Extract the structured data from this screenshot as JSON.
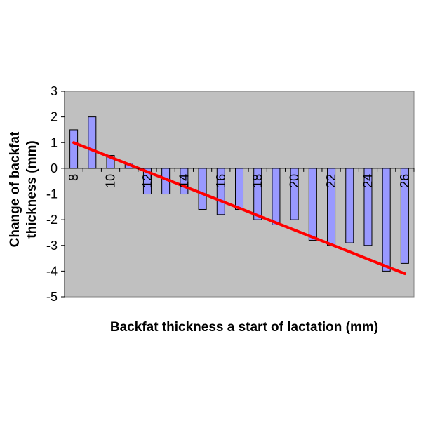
{
  "chart_data": {
    "type": "bar",
    "xlabel": "Backfat thickness a start of lactation (mm)",
    "ylabel_lines": [
      "Change of backfat",
      "thickness (mm)"
    ],
    "x": [
      8,
      9,
      10,
      11,
      12,
      13,
      14,
      15,
      16,
      17,
      18,
      19,
      20,
      21,
      22,
      23,
      24,
      25,
      26
    ],
    "values": [
      1.5,
      2.0,
      0.5,
      0.2,
      -1.0,
      -1.0,
      -1.0,
      -1.6,
      -1.8,
      -1.6,
      -2.0,
      -2.2,
      -2.0,
      -2.8,
      -3.0,
      -2.9,
      -3.0,
      -4.0,
      -3.7
    ],
    "x_tick_labels": [
      "8",
      "10",
      "12",
      "14",
      "16",
      "18",
      "20",
      "22",
      "24",
      "26"
    ],
    "y_tick_labels": [
      "3",
      "2",
      "1",
      "0",
      "-1",
      "-2",
      "-3",
      "-4",
      "-5"
    ],
    "ylim": [
      -5,
      3
    ],
    "trendline": {
      "start": {
        "x": 8,
        "y": 1.0
      },
      "end": {
        "x": 26,
        "y": -4.1
      }
    },
    "grid": false,
    "legend": "none",
    "colors": {
      "plot_background": "#c0c0c0",
      "bar_fill": "#9999ff",
      "bar_stroke": "#000000",
      "trendline": "#ff0000"
    }
  }
}
